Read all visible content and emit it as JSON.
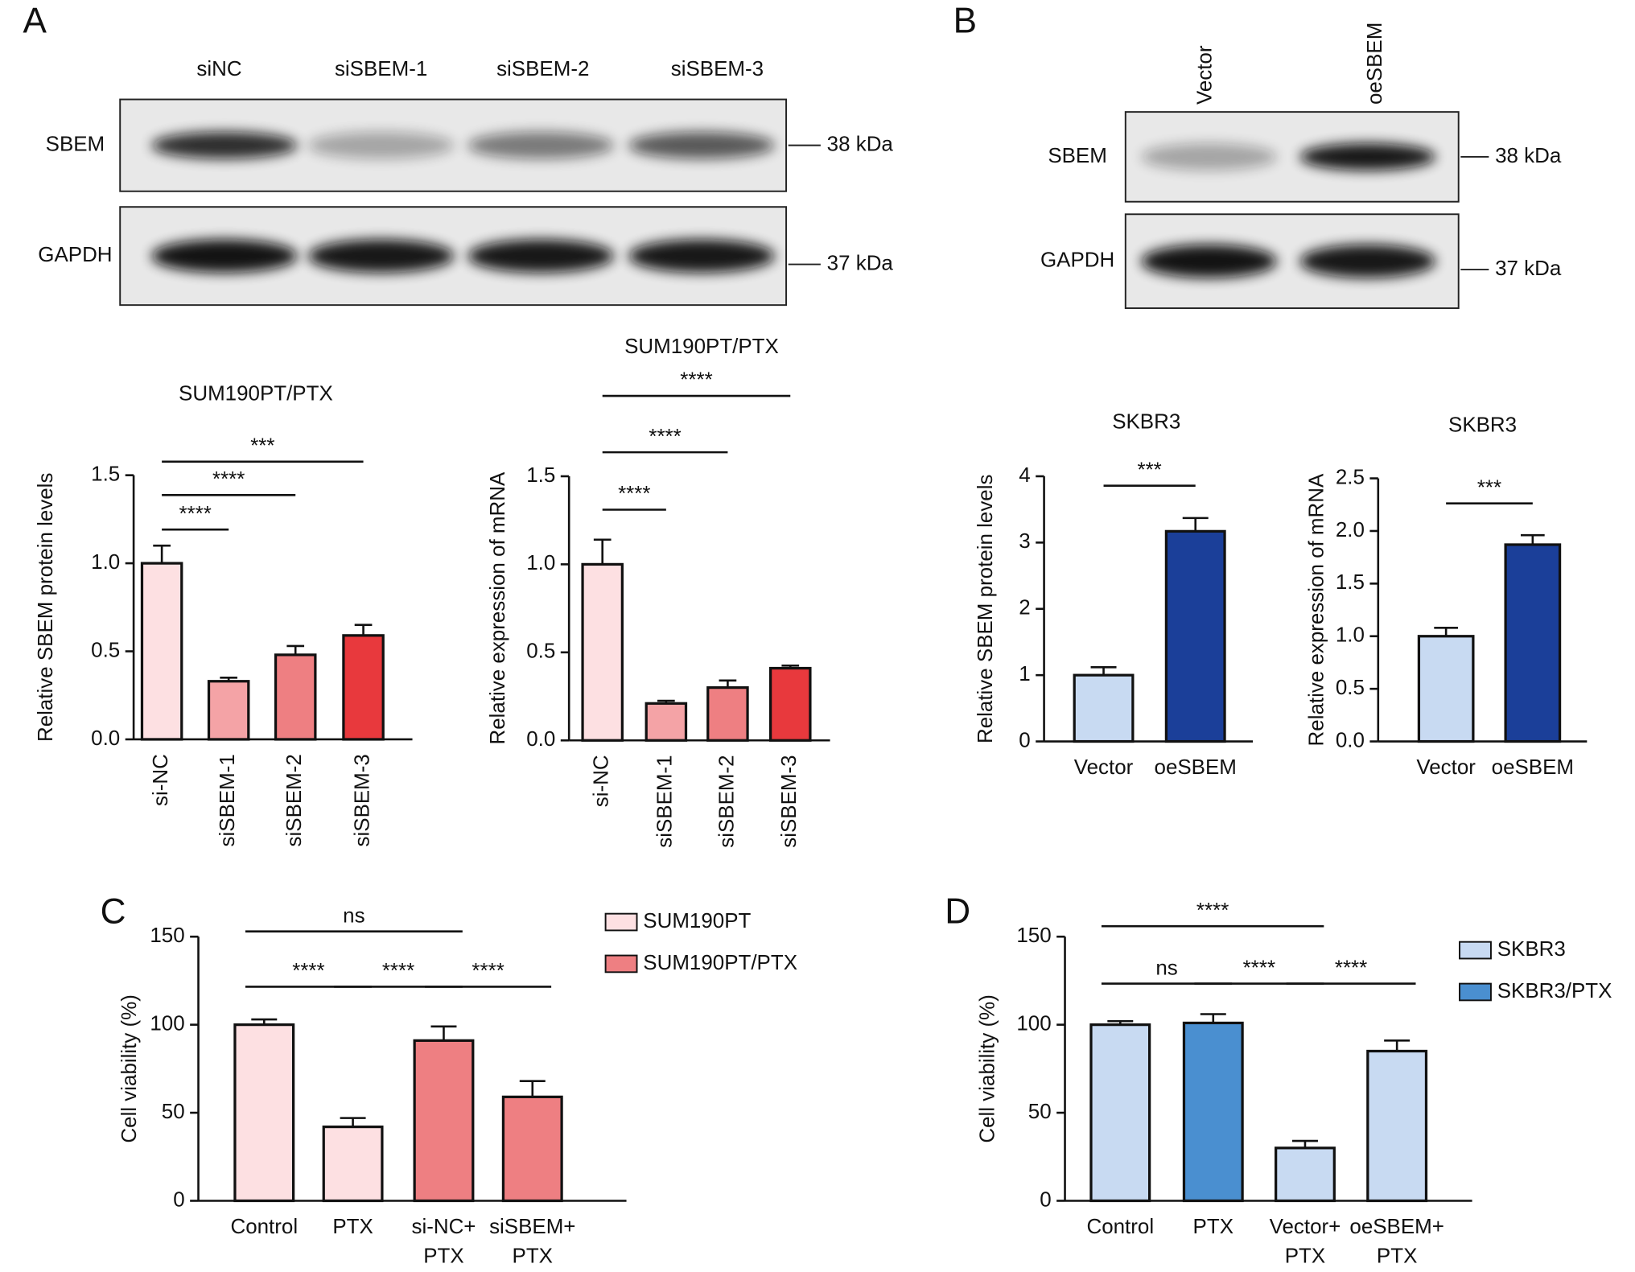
{
  "panels": [
    "A",
    "B",
    "C",
    "D"
  ],
  "blots": [
    {
      "lanes": [
        "siNC",
        "siSBEM-1",
        "siSBEM-2",
        "siSBEM-3"
      ],
      "rows": [
        {
          "protein": "SBEM",
          "size": "38 kDa"
        },
        {
          "protein": "GAPDH",
          "size": "37 kDa"
        }
      ]
    },
    {
      "lanes": [
        "Vector",
        "oeSBEM"
      ],
      "rows": [
        {
          "protein": "SBEM",
          "size": "38 kDa"
        },
        {
          "protein": "GAPDH",
          "size": "37 kDa"
        }
      ]
    }
  ],
  "chart_data": [
    {
      "type": "bar",
      "title": "SUM190PT/PTX",
      "y_label": "Relative SBEM protein levels",
      "categories": [
        "si-NC",
        "siSBEM-1",
        "siSBEM-2",
        "siSBEM-3"
      ],
      "values": [
        1.0,
        0.33,
        0.48,
        0.59
      ],
      "errors": [
        0.1,
        0.02,
        0.05,
        0.06
      ],
      "colors": [
        "#fde0e2",
        "#f4a3a6",
        "#ee7f82",
        "#e8393d"
      ],
      "ylim": [
        0,
        1.5
      ],
      "yticks": [
        {
          "value": 0,
          "label": "0.0"
        },
        {
          "value": 0.5,
          "label": "0.5"
        },
        {
          "value": 1,
          "label": "1.0"
        },
        {
          "value": 1.5,
          "label": "1.5"
        }
      ],
      "annotations": [
        {
          "label": "****",
          "from": 0,
          "to": 1
        },
        {
          "label": "****",
          "from": 0,
          "to": 2
        },
        {
          "label": "***",
          "from": 0,
          "to": 3
        }
      ]
    },
    {
      "type": "bar",
      "title": "SUM190PT/PTX",
      "y_label": "Relative expression of mRNA",
      "categories": [
        "si-NC",
        "siSBEM-1",
        "siSBEM-2",
        "siSBEM-3"
      ],
      "values": [
        1.0,
        0.21,
        0.3,
        0.41
      ],
      "errors": [
        0.14,
        0.015,
        0.04,
        0.015
      ],
      "colors": [
        "#fde0e2",
        "#f4a3a6",
        "#ee7f82",
        "#e8393d"
      ],
      "ylim": [
        0,
        1.5
      ],
      "yticks": [
        {
          "value": 0,
          "label": "0.0"
        },
        {
          "value": 0.5,
          "label": "0.5"
        },
        {
          "value": 1,
          "label": "1.0"
        },
        {
          "value": 1.5,
          "label": "1.5"
        }
      ],
      "annotations": [
        {
          "label": "****",
          "from": 0,
          "to": 1
        },
        {
          "label": "****",
          "from": 0,
          "to": 2
        },
        {
          "label": "****",
          "from": 0,
          "to": 3
        }
      ]
    },
    {
      "type": "bar",
      "title": "SKBR3",
      "y_label": "Relative SBEM protein levels",
      "categories": [
        "Vector",
        "oeSBEM"
      ],
      "values": [
        1.0,
        3.17
      ],
      "errors": [
        0.12,
        0.2
      ],
      "colors": [
        "#c8daf2",
        "#1b3f99"
      ],
      "ylim": [
        0,
        4
      ],
      "yticks": [
        0,
        1,
        2,
        3,
        4
      ],
      "annotations": [
        {
          "label": "***",
          "from": 0,
          "to": 1
        }
      ]
    },
    {
      "type": "bar",
      "title": "SKBR3",
      "y_label": "Relative expression of mRNA",
      "categories": [
        "Vector",
        "oeSBEM"
      ],
      "values": [
        1.0,
        1.87
      ],
      "errors": [
        0.08,
        0.09
      ],
      "colors": [
        "#c8daf2",
        "#1b3f99"
      ],
      "ylim": [
        0,
        2.5
      ],
      "yticks": [
        {
          "value": 0,
          "label": "0.0"
        },
        {
          "value": 0.5,
          "label": "0.5"
        },
        {
          "value": 1,
          "label": "1.0"
        },
        {
          "value": 1.5,
          "label": "1.5"
        },
        {
          "value": 2,
          "label": "2.0"
        },
        {
          "value": 2.5,
          "label": "2.5"
        }
      ],
      "annotations": [
        {
          "label": "***",
          "from": 0,
          "to": 1
        }
      ]
    },
    {
      "type": "bar",
      "y_label": "Cell viability (%)",
      "categories": [
        "Control",
        "PTX",
        "si-NC+\nPTX",
        "siSBEM+\nPTX"
      ],
      "series": [
        {
          "name": "SUM190PT",
          "color": "#fde0e2",
          "values": [
            100,
            42,
            null,
            null
          ],
          "errors": [
            3,
            5,
            null,
            null
          ]
        },
        {
          "name": "SUM190PT/PTX",
          "color": "#ee7f82",
          "values": [
            null,
            null,
            91,
            59
          ],
          "errors": [
            null,
            null,
            8,
            9
          ]
        }
      ],
      "ylim": [
        0,
        150
      ],
      "yticks": [
        0,
        50,
        100,
        150
      ],
      "annotations": [
        {
          "label": "ns",
          "from": 0,
          "to": 2
        },
        {
          "label": "****",
          "from": 0,
          "to": 1
        },
        {
          "label": "****",
          "from": 1,
          "to": 2
        },
        {
          "label": "****",
          "from": 2,
          "to": 3
        }
      ]
    },
    {
      "type": "bar",
      "y_label": "Cell viability (%)",
      "categories": [
        "Control",
        "PTX",
        "Vector+\nPTX",
        "oeSBEM+\nPTX"
      ],
      "series": [
        {
          "name": "SKBR3",
          "color": "#c8daf2",
          "values": [
            100,
            null,
            30,
            85
          ],
          "errors": [
            2,
            null,
            4,
            6
          ]
        },
        {
          "name": "SKBR3/PTX",
          "color": "#4a8fd0",
          "values": [
            null,
            101,
            null,
            null
          ],
          "errors": [
            null,
            5,
            null,
            null
          ]
        }
      ],
      "ylim": [
        0,
        150
      ],
      "yticks": [
        0,
        50,
        100,
        150
      ],
      "annotations": [
        {
          "label": "****",
          "from": 0,
          "to": 2
        },
        {
          "label": "ns",
          "from": 0,
          "to": 1
        },
        {
          "label": "****",
          "from": 1,
          "to": 2
        },
        {
          "label": "****",
          "from": 2,
          "to": 3
        }
      ]
    }
  ]
}
